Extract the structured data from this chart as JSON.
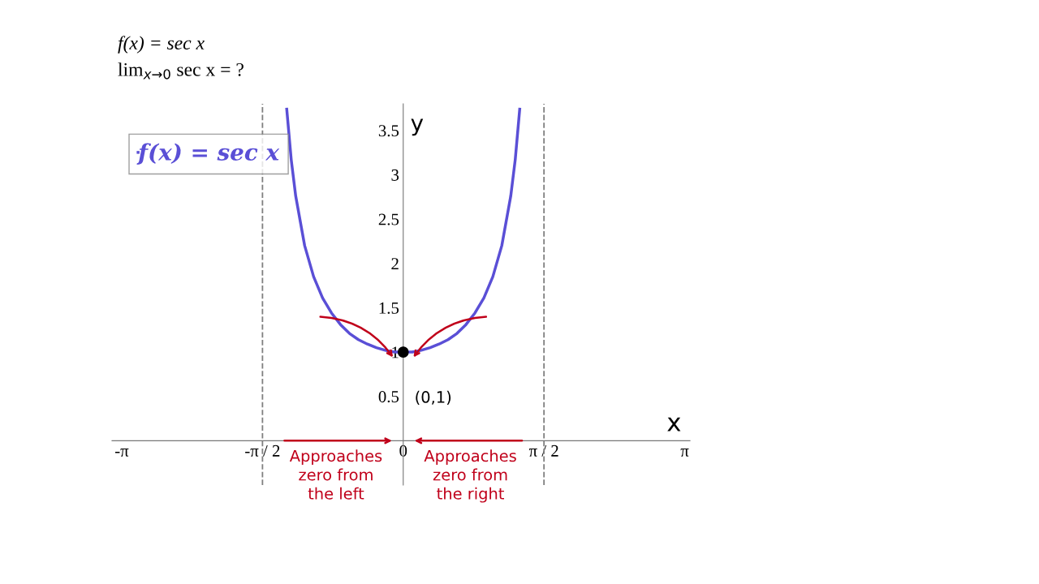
{
  "chart_data": {
    "type": "line",
    "title": "f(x) = sec x",
    "subtitle": "lim$_{x→0}$ sec x = ?",
    "xlabel": "x",
    "ylabel": "y",
    "series": [
      {
        "name": "f(x) = sec x",
        "color": "#5a4fd6",
        "x": [
          -1.3,
          -1.25,
          -1.2,
          -1.1,
          -1.0,
          -0.9,
          -0.8,
          -0.7,
          -0.6,
          -0.5,
          -0.4,
          -0.3,
          -0.2,
          -0.1,
          0,
          0.1,
          0.2,
          0.3,
          0.4,
          0.5,
          0.6,
          0.7,
          0.8,
          0.9,
          1.0,
          1.1,
          1.2,
          1.25,
          1.3
        ],
        "values": [
          3.74,
          3.17,
          2.76,
          2.2,
          1.85,
          1.61,
          1.44,
          1.31,
          1.21,
          1.14,
          1.09,
          1.05,
          1.02,
          1.0,
          1.0,
          1.0,
          1.02,
          1.05,
          1.09,
          1.14,
          1.21,
          1.31,
          1.44,
          1.61,
          1.85,
          2.2,
          2.76,
          3.17,
          3.74
        ]
      },
      {
        "type": "scatter",
        "color": "#000000",
        "x": [
          0
        ],
        "values": [
          1
        ]
      }
    ],
    "annotations": [
      {
        "text": "(0,1)",
        "x": 0,
        "y": 1
      },
      "Approaches\nzero from\nthe left",
      "Approaches\nzero from\nthe right"
    ],
    "ref_lines": [
      {
        "axis": "x",
        "value": -1.5708,
        "color": "#808080",
        "line_style": "dashed"
      },
      {
        "axis": "x",
        "value": 1.5708,
        "color": "#808080",
        "line_style": "dashed"
      }
    ],
    "xlim": [
      -3.25,
      3.2
    ],
    "ylim": [
      -0.5,
      3.8
    ],
    "xticks": [
      {
        "value": -3.1416,
        "label": "-π"
      },
      {
        "value": -1.5708,
        "label": "-π / 2"
      },
      {
        "value": 0,
        "label": "0"
      },
      {
        "value": 1.5708,
        "label": "π / 2"
      },
      {
        "value": 3.1416,
        "label": "π"
      }
    ],
    "yticks": [
      0.5,
      1,
      1.5,
      2,
      2.5,
      3,
      3.5
    ],
    "legend": "top left",
    "grid": false
  }
}
